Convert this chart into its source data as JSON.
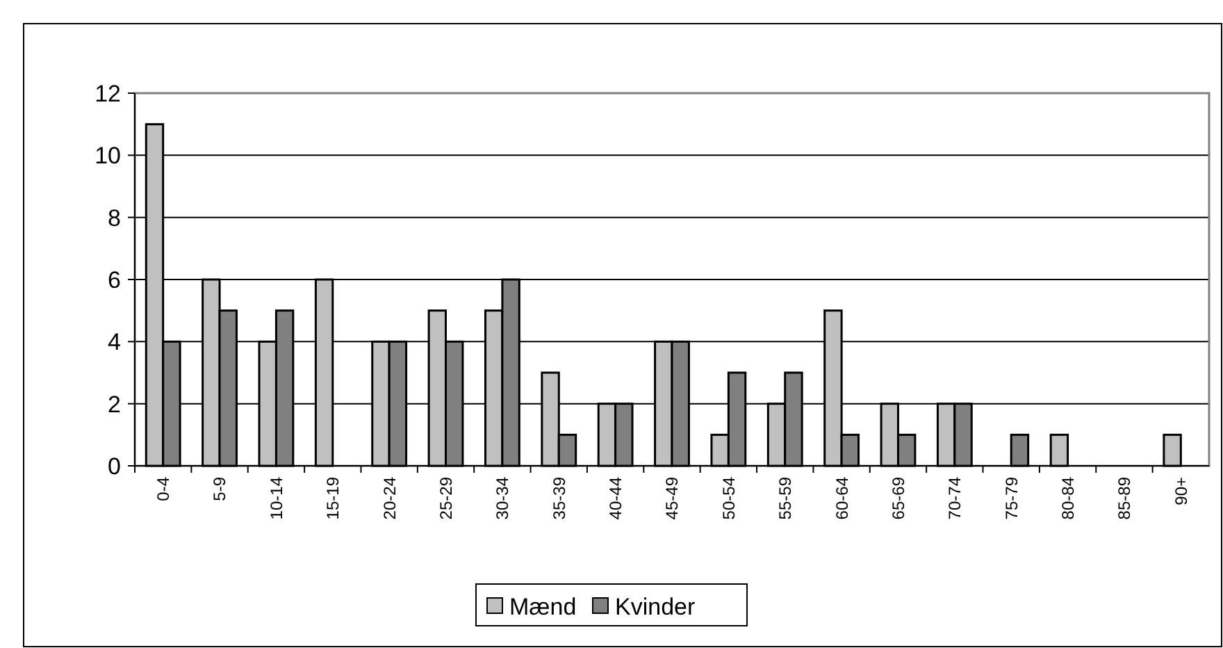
{
  "chart_data": {
    "type": "bar",
    "categories": [
      "0-4",
      "5-9",
      "10-14",
      "15-19",
      "20-24",
      "25-29",
      "30-34",
      "35-39",
      "40-44",
      "45-49",
      "50-54",
      "55-59",
      "60-64",
      "65-69",
      "70-74",
      "75-79",
      "80-84",
      "85-89",
      "90+"
    ],
    "series": [
      {
        "name": "Mænd",
        "color": "#c0c0c0",
        "values": [
          11,
          6,
          4,
          6,
          4,
          5,
          5,
          3,
          2,
          4,
          1,
          2,
          5,
          2,
          2,
          0,
          1,
          0,
          1
        ]
      },
      {
        "name": "Kvinder",
        "color": "#808080",
        "values": [
          4,
          5,
          5,
          0,
          4,
          4,
          6,
          1,
          2,
          4,
          3,
          3,
          1,
          1,
          2,
          1,
          0,
          0,
          0
        ]
      }
    ],
    "ylim": [
      0,
      12
    ],
    "yticks": [
      0,
      2,
      4,
      6,
      8,
      10,
      12
    ],
    "grid": "y",
    "legend": "bottom"
  }
}
